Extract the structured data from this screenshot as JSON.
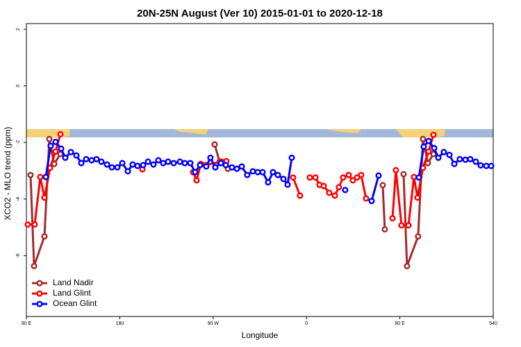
{
  "chart_data": {
    "type": "line",
    "title": "20N-25N August (Ver 10)   2015-01-01 to 2020-12-18",
    "x_label": "Longitude",
    "y_label": "XCO2 - MLO trend (ppm)",
    "xlim": [
      90,
      540
    ],
    "ylim": [
      -8.15,
      2.2
    ],
    "xticks": [
      {
        "value": 90,
        "label": "90 E"
      },
      180,
      {
        "value": 270,
        "label": "90 W"
      },
      {
        "value": 360,
        "label": "0"
      },
      {
        "value": 450,
        "label": "90 E"
      },
      540
    ],
    "yticks": [
      2,
      0,
      -2,
      -4,
      -6
    ],
    "legend": "bottom-left",
    "series": [
      {
        "name": "Land Nadir",
        "color": "#a52a2a",
        "x": [
          94.0,
          97.4,
          107.4,
          112.1,
          116.8,
          122.8,
          null,
          271.5,
          276.2,
          284.2,
          null,
          433.5,
          435.5,
          null,
          453.6,
          456.9,
          467.6,
          472.3,
          477.0,
          482.4
        ],
        "values": [
          -3.15,
          -6.37,
          -5.32,
          -1.88,
          -2.76,
          -2.41,
          null,
          -2.07,
          -2.68,
          -2.93,
          null,
          -3.51,
          -5.07,
          null,
          -3.12,
          -6.37,
          -5.32,
          -1.88,
          -2.73,
          -2.41
        ]
      },
      {
        "name": "Land Glint",
        "color": "#ff0000",
        "x": [
          91.3,
          98.0,
          103.4,
          107.4,
          112.8,
          118.1,
          122.8,
          null,
          201.8,
          null,
          250.7,
          254.1,
          258.1,
          262.8,
          278.2,
          282.8,
          null,
          347.1,
          353.8,
          null,
          363.2,
          368.6,
          372.6,
          376.6,
          381.9,
          387.3,
          391.3,
          395.3,
          400.7,
          404.7,
          408.7,
          412.7,
          417.4,
          null,
          442.9,
          446.2,
          451.6,
          458.3,
          463.6,
          467.0,
          472.3,
          477.7,
          482.4
        ],
        "values": [
          -4.9,
          -4.9,
          -3.22,
          -3.95,
          -2.9,
          -2.32,
          -1.71,
          null,
          -2.95,
          null,
          -3.05,
          -3.34,
          -2.76,
          -2.8,
          -2.68,
          -2.66,
          null,
          -3.24,
          -3.88,
          null,
          -3.24,
          -3.24,
          -3.5,
          -3.54,
          -3.78,
          -3.88,
          -3.58,
          -3.24,
          -3.15,
          -3.34,
          -3.24,
          -3.15,
          -3.98,
          null,
          -4.68,
          -2.98,
          -4.93,
          -4.93,
          -3.22,
          -3.95,
          -2.9,
          -2.32,
          -1.73
        ]
      },
      {
        "name": "Ocean Glint",
        "color": "#0000ff",
        "x": [
          108.7,
          113.4,
          118.1,
          123.5,
          127.5,
          132.9,
          138.2,
          142.9,
          147.6,
          152.9,
          157.6,
          162.3,
          167.7,
          172.4,
          177.7,
          182.4,
          187.8,
          192.4,
          197.1,
          202.5,
          207.2,
          212.5,
          217.2,
          221.9,
          226.6,
          232.0,
          238.0,
          242.7,
          248.0,
          252.7,
          257.4,
          263.4,
          267.4,
          272.1,
          277.5,
          282.2,
          288.2,
          292.9,
          297.6,
          302.9,
          308.3,
          313.0,
          317.7,
          323.0,
          327.7,
          332.4,
          337.8,
          341.8,
          345.8,
          null,
          397.3,
          null,
          422.8,
          429.5,
          null,
          468.3,
          473.0,
          477.7,
          483.1,
          487.1,
          492.4,
          497.8,
          502.5,
          507.8,
          513.2,
          517.9,
          523.2,
          527.9,
          533.3,
          538.0
        ],
        "values": [
          -3.22,
          -2.12,
          -1.98,
          -2.22,
          -2.54,
          -2.34,
          -2.46,
          -2.73,
          -2.59,
          -2.63,
          -2.59,
          -2.68,
          -2.78,
          -2.88,
          -2.88,
          -2.73,
          -3.02,
          -2.78,
          -2.83,
          -2.8,
          -2.68,
          -2.78,
          -2.63,
          -2.73,
          -2.68,
          -2.73,
          -2.68,
          -2.73,
          -2.73,
          -3.05,
          -2.8,
          -2.85,
          -2.54,
          -2.88,
          -2.73,
          -2.8,
          -2.88,
          -2.93,
          -2.85,
          -3.15,
          -3.02,
          -3.05,
          -3.05,
          -3.41,
          -3.05,
          -3.15,
          -3.29,
          -3.49,
          -2.54,
          null,
          -3.68,
          null,
          -4.07,
          -3.17,
          null,
          -3.24,
          -2.15,
          -1.95,
          -2.2,
          -2.54,
          -2.34,
          -2.44,
          -2.76,
          -2.59,
          -2.61,
          -2.59,
          -2.68,
          -2.81,
          -2.83,
          -2.83
        ]
      }
    ]
  }
}
